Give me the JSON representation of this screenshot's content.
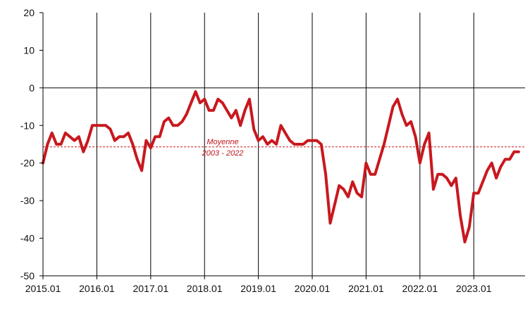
{
  "chart_data": {
    "type": "line",
    "title": "",
    "xlabel": "",
    "ylabel": "",
    "ylim": [
      -50,
      20
    ],
    "yticks": [
      20,
      10,
      0,
      -10,
      -20,
      -30,
      -40,
      -50
    ],
    "x_tick_labels": [
      "2015.01",
      "2016.01",
      "2017.01",
      "2018.01",
      "2019.01",
      "2020.01",
      "2021.01",
      "2022.01",
      "2023.01"
    ],
    "grid": "vertical lines at each January",
    "series": [
      {
        "color": "#c8181e",
        "x": [
          "2015-01",
          "2015-02",
          "2015-03",
          "2015-04",
          "2015-05",
          "2015-06",
          "2015-07",
          "2015-08",
          "2015-09",
          "2015-10",
          "2015-11",
          "2015-12",
          "2016-01",
          "2016-02",
          "2016-03",
          "2016-04",
          "2016-05",
          "2016-06",
          "2016-07",
          "2016-08",
          "2016-09",
          "2016-10",
          "2016-11",
          "2016-12",
          "2017-01",
          "2017-02",
          "2017-03",
          "2017-04",
          "2017-05",
          "2017-06",
          "2017-07",
          "2017-08",
          "2017-09",
          "2017-10",
          "2017-11",
          "2017-12",
          "2018-01",
          "2018-02",
          "2018-03",
          "2018-04",
          "2018-05",
          "2018-06",
          "2018-07",
          "2018-08",
          "2018-09",
          "2018-10",
          "2018-11",
          "2018-12",
          "2019-01",
          "2019-02",
          "2019-03",
          "2019-04",
          "2019-05",
          "2019-06",
          "2019-07",
          "2019-08",
          "2019-09",
          "2019-10",
          "2019-11",
          "2019-12",
          "2020-01",
          "2020-02",
          "2020-03",
          "2020-04",
          "2020-05",
          "2020-06",
          "2020-07",
          "2020-08",
          "2020-09",
          "2020-10",
          "2020-11",
          "2020-12",
          "2021-01",
          "2021-02",
          "2021-03",
          "2021-04",
          "2021-05",
          "2021-06",
          "2021-07",
          "2021-08",
          "2021-09",
          "2021-10",
          "2021-11",
          "2021-12",
          "2022-01",
          "2022-02",
          "2022-03",
          "2022-04",
          "2022-05",
          "2022-06",
          "2022-07",
          "2022-08",
          "2022-09",
          "2022-10",
          "2022-11",
          "2022-12",
          "2023-01",
          "2023-02",
          "2023-03",
          "2023-04",
          "2023-05",
          "2023-06",
          "2023-07",
          "2023-08",
          "2023-09",
          "2023-10",
          "2023-11"
        ],
        "values": [
          -20,
          -15,
          -12,
          -15,
          -15,
          -12,
          -13,
          -14,
          -13,
          -17,
          -14,
          -10,
          -10,
          -10,
          -10,
          -11,
          -14,
          -13,
          -13,
          -12,
          -15,
          -19,
          -22,
          -14,
          -16,
          -13,
          -13,
          -9,
          -8,
          -10,
          -10,
          -9,
          -7,
          -4,
          -1,
          -4,
          -3,
          -6,
          -6,
          -3,
          -4,
          -6,
          -8,
          -6,
          -10,
          -6,
          -3,
          -11,
          -14,
          -13,
          -15,
          -14,
          -15,
          -10,
          -12,
          -14,
          -15,
          -15,
          -15,
          -14,
          -14,
          -14,
          -15,
          -23,
          -36,
          -31,
          -26,
          -27,
          -29,
          -25,
          -28,
          -29,
          -20,
          -23,
          -23,
          -19,
          -15,
          -10,
          -5,
          -3,
          -7,
          -10,
          -9,
          -13,
          -20,
          -15,
          -12,
          -27,
          -23,
          -23,
          -24,
          -26,
          -24,
          -34,
          -41,
          -37,
          -28,
          -28,
          -25,
          -22,
          -20,
          -24,
          -21,
          -19,
          -19,
          -17,
          -17
        ]
      }
    ],
    "average": {
      "value": -15.7,
      "label_line1": "Moyenne",
      "label_line2": "2003 - 2022",
      "color": "#c8181e"
    }
  }
}
